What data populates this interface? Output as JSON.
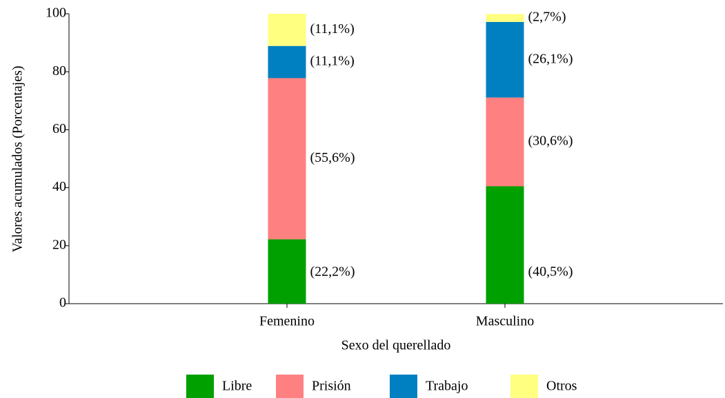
{
  "chart_data": {
    "type": "stacked-bar",
    "categories": [
      "Femenino",
      "Masculino"
    ],
    "series": [
      {
        "name": "Libre",
        "color": "#00a000",
        "values": [
          22.2,
          40.5
        ],
        "value_labels": [
          "(22,2%)",
          "(40,5%)"
        ]
      },
      {
        "name": "Prisión",
        "color": "#ff8080",
        "values": [
          55.6,
          30.6
        ],
        "value_labels": [
          "(55,6%)",
          "(30,6%)"
        ]
      },
      {
        "name": "Trabajo",
        "color": "#0080c0",
        "values": [
          11.1,
          26.1
        ],
        "value_labels": [
          "(11,1%)",
          "(26,1%)"
        ]
      },
      {
        "name": "Otros",
        "color": "#ffff80",
        "values": [
          11.1,
          2.7
        ],
        "value_labels": [
          "(11,1%)",
          "(2,7%)"
        ]
      }
    ],
    "ylabel": "Valores acumulados (Porcentajes)",
    "xlabel": "Sexo del querellado",
    "ylim": [
      0,
      100
    ],
    "yticks": [
      0,
      20,
      40,
      60,
      80,
      100
    ],
    "legend": "bottom"
  }
}
